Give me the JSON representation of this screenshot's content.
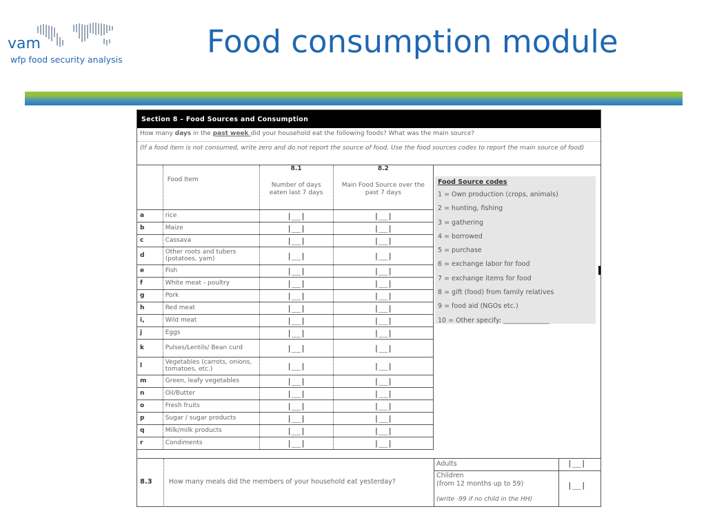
{
  "logo": {
    "name": "vam",
    "subtitle": "wfp food security analysis"
  },
  "slide": {
    "title": "Food consumption module"
  },
  "form": {
    "section_header": "Section 8 – Food Sources and Consumption",
    "question": {
      "pre": "How many ",
      "bold": "days",
      "mid": " in the ",
      "underline": "past week ",
      "post": "did your household eat the following foods? What was the main source?"
    },
    "instruction": "(If a food item is not consumed, write zero and do not report the source of food. Use the food sources codes to report the main source of food)",
    "col_81": "8.1",
    "col_82": "8.2",
    "food_item_header": "Food Item",
    "days_header": "Number of days eaten last 7 days",
    "source_header": "Main Food Source over the past 7 days",
    "answer_box": "|__|",
    "items": [
      {
        "code": "a",
        "label": "rice"
      },
      {
        "code": "b",
        "label": "Maize"
      },
      {
        "code": "c",
        "label": "Cassava"
      },
      {
        "code": "d",
        "label": "Other roots and tubers (potatoes, yam)"
      },
      {
        "code": "e",
        "label": "Fish"
      },
      {
        "code": "f",
        "label": "White meat  - poultry"
      },
      {
        "code": "g",
        "label": "Pork"
      },
      {
        "code": "h",
        "label": "Red meat"
      },
      {
        "code": "i,",
        "label": "Wild meat"
      },
      {
        "code": "j",
        "label": "Eggs"
      },
      {
        "code": "k",
        "label": "Pulses/Lentils/ Bean curd"
      },
      {
        "code": "l",
        "label": "Vegetables (carrots, onions, tomatoes, etc.)"
      },
      {
        "code": "m",
        "label": "Green, leafy vegetables"
      },
      {
        "code": "n",
        "label": "Oil/Butter"
      },
      {
        "code": "o",
        "label": "Fresh fruits"
      },
      {
        "code": "p",
        "label": "Sugar / sugar products"
      },
      {
        "code": "q",
        "label": "Milk/milk products"
      },
      {
        "code": "r",
        "label": "Condiments"
      }
    ],
    "codes_title": "Food Source codes",
    "codes": [
      "1 = Own production (crops, animals)",
      "2 = hunting, fishing",
      "3 = gathering",
      "4 = borrowed",
      "5 = purchase",
      "6 = exchange labor for food",
      "7 = exchange items for food",
      "8 = gift (food) from family relatives",
      "9 = food aid (NGOs etc.)",
      "10 = Other specify: ______________"
    ],
    "meals": {
      "code": "8.3",
      "question": "How many meals did the members of your household eat yesterday?",
      "adults": "Adults",
      "children_1": "Children",
      "children_2": "(from 12 months up to 59)",
      "note": "(write -99 if no child in the HH)",
      "box": "|__|"
    }
  }
}
